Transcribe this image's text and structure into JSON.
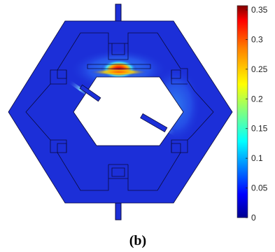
{
  "figure": {
    "caption": "(b)"
  },
  "colorbar": {
    "min": 0,
    "max": 0.35,
    "ticks": [
      {
        "value": 0.35,
        "label": "0.35"
      },
      {
        "value": 0.3,
        "label": "0.3"
      },
      {
        "value": 0.25,
        "label": "0.25"
      },
      {
        "value": 0.2,
        "label": "0.2"
      },
      {
        "value": 0.15,
        "label": "0.15"
      },
      {
        "value": 0.1,
        "label": "0.1"
      },
      {
        "value": 0.05,
        "label": "0.05"
      },
      {
        "value": 0,
        "label": "0"
      }
    ],
    "colormap": [
      "#00008f",
      "#0000ff",
      "#0080ff",
      "#00ffff",
      "#80ff80",
      "#ffff00",
      "#ff8000",
      "#ff0000",
      "#800000"
    ]
  },
  "colors": {
    "field_background": "#1c2fd8",
    "outline": "#0a0a3c",
    "hot_spot": "#ff2000",
    "warm": "#ff9f00"
  }
}
